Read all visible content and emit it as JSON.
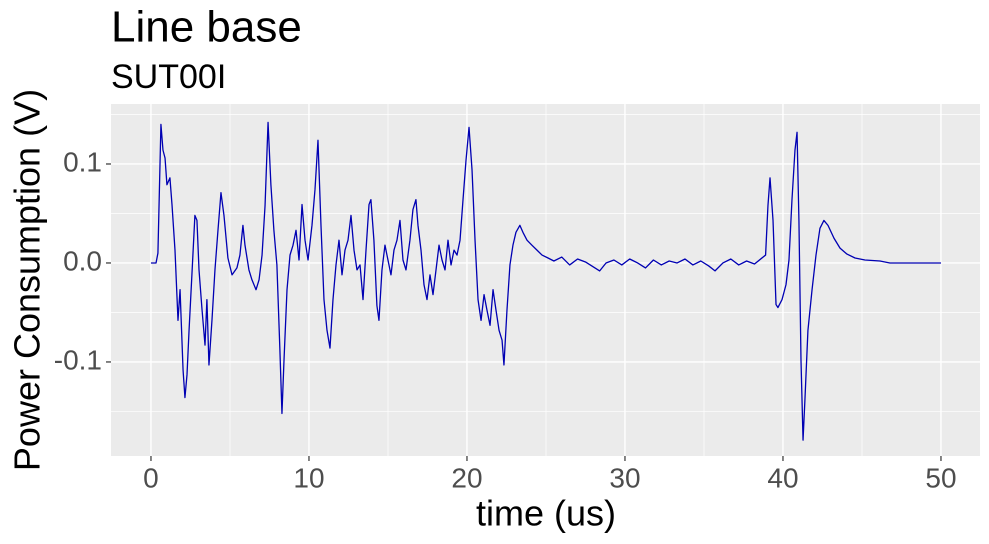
{
  "chart_data": {
    "type": "line",
    "title": "Line base",
    "subtitle": "SUT00I",
    "x_label": "time (us)",
    "y_label": "Power Consumption (V)",
    "xlim": [
      -2.53,
      52.47
    ],
    "ylim": [
      -0.195,
      0.1606
    ],
    "xticks": [
      0,
      10,
      20,
      30,
      40,
      50
    ],
    "yticks": [
      -0.1,
      {
        "value": 0,
        "label": "0.0"
      },
      0.1
    ],
    "minor_xticks": [
      5,
      15,
      25,
      35,
      45
    ],
    "minor_yticks": [
      -0.15,
      -0.05,
      0.05,
      0.15
    ],
    "grid": true,
    "series": [
      {
        "color": "#0000b3",
        "x": [
          0,
          0.32,
          0.44,
          0.63,
          0.76,
          0.89,
          1.01,
          1.2,
          1.33,
          1.52,
          1.71,
          1.84,
          2.03,
          2.15,
          2.28,
          2.41,
          2.59,
          2.78,
          2.91,
          3.04,
          3.23,
          3.42,
          3.54,
          3.67,
          3.86,
          4.05,
          4.24,
          4.43,
          4.62,
          4.87,
          5.13,
          5.44,
          5.63,
          5.82,
          5.95,
          6.2,
          6.39,
          6.65,
          6.84,
          7.03,
          7.22,
          7.41,
          7.59,
          7.78,
          7.97,
          8.16,
          8.29,
          8.42,
          8.61,
          8.8,
          8.99,
          9.18,
          9.37,
          9.56,
          9.75,
          9.94,
          10.19,
          10.38,
          10.57,
          10.76,
          10.95,
          11.14,
          11.33,
          11.52,
          11.71,
          11.9,
          12.09,
          12.28,
          12.47,
          12.66,
          12.85,
          13.04,
          13.23,
          13.42,
          13.61,
          13.8,
          13.92,
          14.11,
          14.3,
          14.43,
          14.62,
          14.81,
          15,
          15.19,
          15.38,
          15.57,
          15.76,
          15.95,
          16.14,
          16.39,
          16.58,
          16.77,
          16.9,
          17.09,
          17.28,
          17.47,
          17.66,
          17.85,
          18.04,
          18.23,
          18.42,
          18.61,
          18.8,
          18.99,
          19.18,
          19.37,
          19.56,
          19.75,
          19.94,
          20.13,
          20.32,
          20.51,
          20.7,
          20.89,
          21.08,
          21.27,
          21.46,
          21.65,
          21.84,
          22.03,
          22.22,
          22.34,
          22.53,
          22.72,
          22.91,
          23.1,
          23.35,
          23.54,
          23.8,
          24.11,
          24.43,
          24.75,
          25.13,
          25.5,
          26,
          26.5,
          27,
          27.5,
          28,
          28.4,
          28.8,
          29.3,
          29.8,
          30.3,
          30.8,
          31.3,
          31.8,
          32.3,
          32.8,
          33.3,
          33.8,
          34.3,
          34.8,
          35.3,
          35.7,
          36.2,
          36.7,
          37.2,
          37.7,
          38.2,
          38.9,
          39.05,
          39.18,
          39.37,
          39.56,
          39.68,
          39.94,
          40.19,
          40.38,
          40.57,
          40.76,
          40.89,
          41.01,
          41.14,
          41.27,
          41.39,
          41.58,
          41.84,
          42.09,
          42.34,
          42.59,
          42.85,
          43.23,
          43.61,
          44.05,
          44.56,
          45.19,
          46.14,
          46.77,
          50
        ],
        "values": [
          0,
          0,
          0.01,
          0.14,
          0.114,
          0.106,
          0.079,
          0.086,
          0.059,
          0.013,
          -0.058,
          -0.027,
          -0.108,
          -0.136,
          -0.113,
          -0.068,
          -0.012,
          0.048,
          0.043,
          -0.007,
          -0.047,
          -0.083,
          -0.037,
          -0.103,
          -0.058,
          -0.007,
          0.033,
          0.071,
          0.048,
          0.005,
          -0.012,
          -0.005,
          0.008,
          0.038,
          0.018,
          -0.007,
          -0.017,
          -0.027,
          -0.017,
          0.008,
          0.058,
          0.142,
          0.079,
          0.033,
          -0.002,
          -0.088,
          -0.152,
          -0.098,
          -0.027,
          0.008,
          0.018,
          0.033,
          0.003,
          0.059,
          0.023,
          0.003,
          0.038,
          0.074,
          0.124,
          0.038,
          -0.037,
          -0.068,
          -0.086,
          -0.037,
          -0.002,
          0.023,
          -0.012,
          0.013,
          0.023,
          0.048,
          0.013,
          -0.007,
          -0.002,
          -0.037,
          0.013,
          0.059,
          0.064,
          0.023,
          -0.043,
          -0.058,
          -0.007,
          0.018,
          0.003,
          -0.012,
          0.013,
          0.023,
          0.043,
          0.003,
          -0.007,
          0.023,
          0.054,
          0.064,
          0.038,
          0.013,
          -0.022,
          -0.037,
          -0.012,
          -0.032,
          -0.007,
          0.018,
          0.003,
          -0.007,
          0.023,
          -0.002,
          0.013,
          0.008,
          0.023,
          0.064,
          0.104,
          0.137,
          0.094,
          0.023,
          -0.037,
          -0.058,
          -0.032,
          -0.048,
          -0.063,
          -0.027,
          -0.048,
          -0.068,
          -0.078,
          -0.103,
          -0.048,
          -0.002,
          0.018,
          0.031,
          0.038,
          0.031,
          0.023,
          0.018,
          0.013,
          0.008,
          0.005,
          0.002,
          0.006,
          -0.002,
          0.004,
          0.001,
          -0.004,
          -0.008,
          0,
          0.003,
          -0.002,
          0.004,
          0,
          -0.005,
          0.003,
          -0.002,
          0.002,
          0,
          0.004,
          -0.002,
          0.002,
          -0.003,
          -0.008,
          0,
          0.004,
          -0.002,
          0.002,
          -0.001,
          0.008,
          0.058,
          0.086,
          0.043,
          -0.042,
          -0.045,
          -0.037,
          -0.022,
          0.003,
          0.064,
          0.114,
          0.132,
          0.043,
          -0.098,
          -0.179,
          -0.138,
          -0.068,
          -0.027,
          0.008,
          0.035,
          0.043,
          0.038,
          0.025,
          0.015,
          0.009,
          0.005,
          0.003,
          0.002,
          0,
          0
        ]
      }
    ]
  }
}
